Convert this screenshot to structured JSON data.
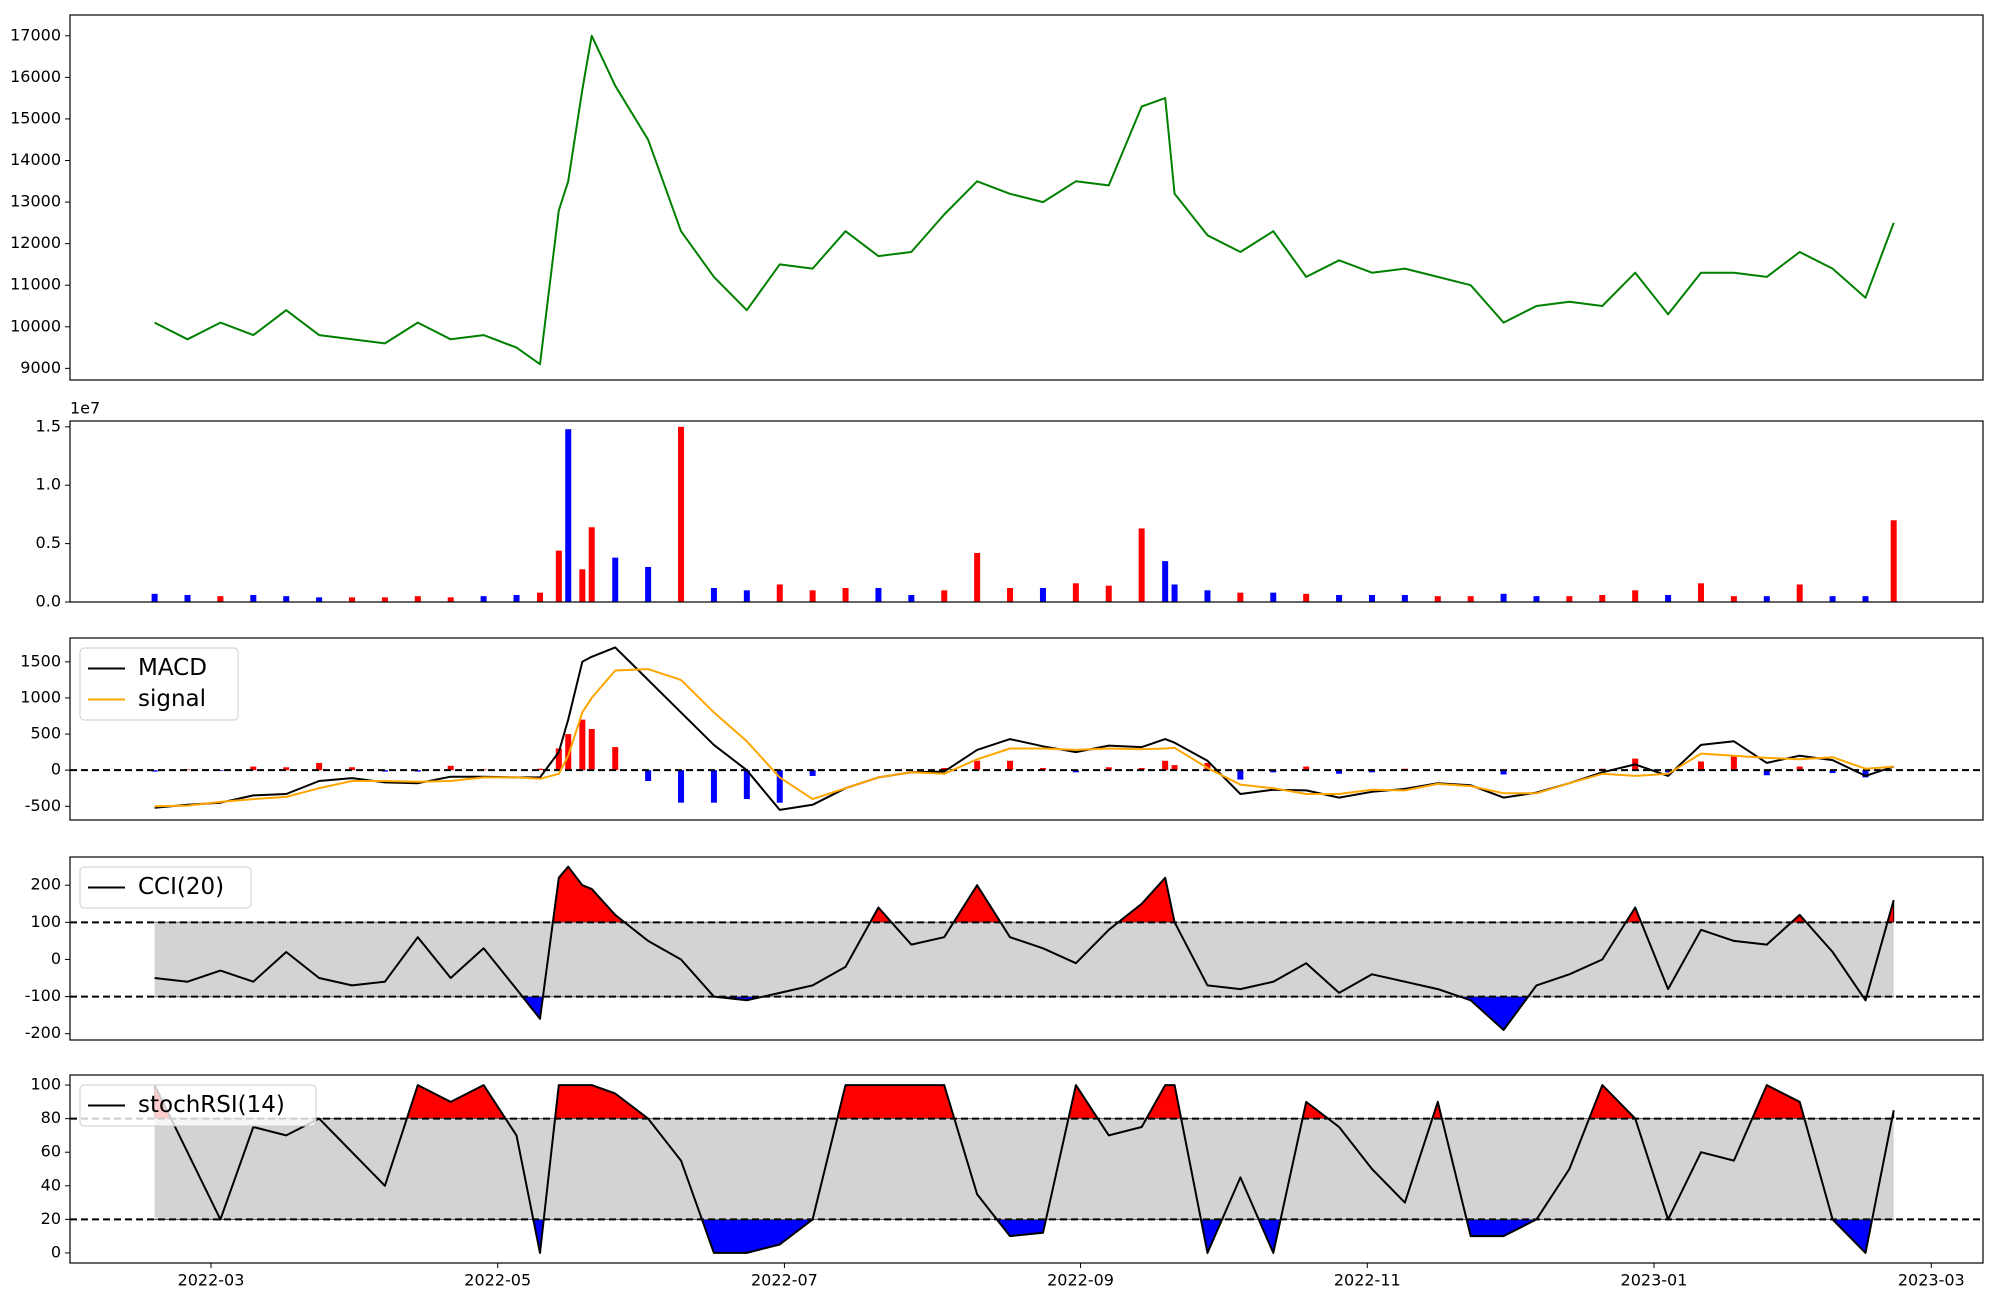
{
  "chart_data": [
    {
      "type": "line",
      "series": [
        {
          "color": "#008000",
          "values": [
            10100,
            9700,
            10100,
            9800,
            10400,
            9800,
            9700,
            9600,
            10100,
            9700,
            9800,
            9500,
            9100,
            12800,
            13500,
            15700,
            17000,
            15800,
            14500,
            12300,
            11200,
            10400,
            11500,
            11400,
            12300,
            11700,
            11800,
            12700,
            13500,
            13200,
            13000,
            13500,
            13400,
            15300,
            15500,
            13200,
            12200,
            11800,
            12300,
            11200,
            11600,
            11300,
            11400,
            11200,
            11000,
            10100,
            10500,
            10600,
            10500,
            11300,
            10300,
            11300,
            11300,
            11200,
            11800,
            11400,
            10700,
            12500
          ]
        }
      ],
      "ylim": [
        8720,
        17500
      ],
      "yticks": [
        9000,
        10000,
        11000,
        12000,
        13000,
        14000,
        15000,
        16000,
        17000
      ]
    },
    {
      "type": "bar",
      "offset_label": "1e7",
      "values": [
        0.07,
        0.06,
        0.05,
        0.06,
        0.05,
        0.04,
        0.04,
        0.04,
        0.05,
        0.04,
        0.05,
        0.06,
        0.08,
        0.44,
        1.48,
        0.28,
        0.64,
        0.38,
        0.3,
        1.5,
        0.12,
        0.1,
        0.15,
        0.1,
        0.12,
        0.12,
        0.06,
        0.1,
        0.42,
        0.12,
        0.12,
        0.16,
        0.14,
        0.63,
        0.35,
        0.15,
        0.1,
        0.08,
        0.08,
        0.07,
        0.06,
        0.06,
        0.06,
        0.05,
        0.05,
        0.07,
        0.05,
        0.05,
        0.06,
        0.1,
        0.06,
        0.16,
        0.05,
        0.05,
        0.15,
        0.05,
        0.05,
        0.7
      ],
      "colors": [
        "blue",
        "blue",
        "red",
        "blue",
        "blue",
        "blue",
        "red",
        "red",
        "red",
        "red",
        "blue",
        "blue",
        "red",
        "red",
        "blue",
        "red",
        "red",
        "blue",
        "blue",
        "red",
        "blue",
        "blue",
        "red",
        "red",
        "red",
        "blue",
        "blue",
        "red",
        "red",
        "red",
        "blue",
        "red",
        "red",
        "red",
        "blue",
        "blue",
        "blue",
        "red",
        "blue",
        "red",
        "blue",
        "blue",
        "blue",
        "red",
        "red",
        "blue",
        "blue",
        "red",
        "red",
        "red",
        "blue",
        "red",
        "red",
        "blue",
        "red",
        "blue",
        "blue",
        "red"
      ],
      "ylim": [
        0,
        1.55
      ],
      "yticks": [
        {
          "value": 0,
          "label": "0.0"
        },
        0.5,
        {
          "value": 1,
          "label": "1.0"
        },
        1.5
      ]
    },
    {
      "type": "macd",
      "series": [
        {
          "name": "MACD",
          "color": "#000000",
          "values": [
            -520,
            -480,
            -450,
            -350,
            -330,
            -150,
            -110,
            -170,
            -180,
            -90,
            -90,
            -100,
            -100,
            250,
            700,
            1500,
            1570,
            1700,
            1250,
            800,
            350,
            0,
            -550,
            -480,
            -250,
            -100,
            -30,
            -20,
            280,
            430,
            330,
            250,
            340,
            320,
            430,
            380,
            130,
            -330,
            -270,
            -280,
            -380,
            -300,
            -260,
            -180,
            -210,
            -380,
            -310,
            -180,
            -30,
            80,
            -80,
            350,
            400,
            100,
            200,
            140,
            -80,
            50
          ]
        },
        {
          "name": "signal",
          "color": "#ffa500",
          "values": [
            -500,
            -490,
            -440,
            -400,
            -370,
            -250,
            -150,
            -150,
            -160,
            -150,
            -100,
            -100,
            -120,
            -50,
            200,
            800,
            1000,
            1380,
            1400,
            1250,
            800,
            400,
            -100,
            -400,
            -250,
            -100,
            -30,
            -50,
            150,
            300,
            300,
            280,
            300,
            290,
            300,
            310,
            30,
            -200,
            -250,
            -330,
            -330,
            -270,
            -280,
            -190,
            -220,
            -320,
            -320,
            -180,
            -50,
            -80,
            -50,
            230,
            200,
            170,
            150,
            180,
            20,
            50
          ]
        }
      ],
      "histogram": {
        "up_color": "#ff0000",
        "down_color": "#0000ff",
        "values": [
          -20,
          10,
          -10,
          50,
          40,
          100,
          40,
          -20,
          -20,
          60,
          10,
          0,
          20,
          300,
          500,
          700,
          570,
          320,
          -150,
          -450,
          -450,
          -400,
          -450,
          -80,
          0,
          0,
          0,
          30,
          130,
          130,
          30,
          -30,
          40,
          30,
          130,
          70,
          100,
          -130,
          -30,
          50,
          -50,
          -30,
          20,
          10,
          10,
          -60,
          10,
          0,
          20,
          160,
          -30,
          120,
          200,
          -70,
          50,
          -40,
          -100,
          0
        ]
      },
      "hline": 0,
      "legend": "upper left",
      "ylim": [
        -690,
        1830
      ],
      "yticks": [
        -500,
        0,
        500,
        1000,
        1500
      ]
    },
    {
      "type": "oscillator",
      "series": [
        {
          "name": "CCI(20)",
          "color": "#000000",
          "values": [
            -50,
            -60,
            -30,
            -60,
            20,
            -50,
            -70,
            -60,
            60,
            -50,
            30,
            -80,
            -160,
            220,
            250,
            200,
            190,
            120,
            50,
            0,
            -100,
            -110,
            -90,
            -70,
            -20,
            140,
            40,
            60,
            200,
            60,
            30,
            -10,
            80,
            150,
            220,
            100,
            -70,
            -80,
            -60,
            -10,
            -90,
            -40,
            -60,
            -80,
            -110,
            -190,
            -70,
            -40,
            0,
            140,
            -80,
            80,
            50,
            40,
            120,
            20,
            -110,
            160
          ]
        }
      ],
      "upper": 100,
      "lower": -100,
      "upper_color": "#ff0000",
      "lower_color": "#0000ff",
      "band_color": "#d3d3d3",
      "legend": "upper left",
      "ylim": [
        -217,
        276
      ],
      "yticks": [
        -200,
        -100,
        0,
        100,
        200
      ]
    },
    {
      "type": "oscillator",
      "series": [
        {
          "name": "stochRSI(14)",
          "color": "#000000",
          "values": [
            100,
            60,
            20,
            75,
            70,
            80,
            60,
            40,
            100,
            90,
            100,
            70,
            0,
            100,
            100,
            100,
            100,
            95,
            80,
            55,
            0,
            0,
            5,
            20,
            100,
            100,
            100,
            100,
            35,
            10,
            12,
            100,
            70,
            75,
            100,
            100,
            0,
            45,
            0,
            90,
            75,
            50,
            30,
            90,
            10,
            10,
            20,
            50,
            100,
            80,
            20,
            60,
            55,
            100,
            90,
            20,
            0,
            85
          ]
        }
      ],
      "upper": 80,
      "lower": 20,
      "upper_color": "#ff0000",
      "lower_color": "#0000ff",
      "band_color": "#d3d3d3",
      "legend": "upper left",
      "ylim": [
        -6,
        106
      ],
      "yticks": [
        0,
        20,
        40,
        60,
        80,
        100
      ],
      "x": [
        18,
        25,
        32,
        39,
        46,
        53,
        60,
        67,
        74,
        81,
        88,
        95,
        100,
        104,
        106,
        109,
        111,
        116,
        123,
        130,
        137,
        144,
        151,
        158,
        165,
        172,
        179,
        186,
        193,
        200,
        207,
        214,
        221,
        228,
        233,
        235,
        242,
        249,
        256,
        263,
        270,
        277,
        284,
        291,
        298,
        305,
        312,
        319,
        326,
        333,
        340,
        347,
        354,
        361,
        368,
        375,
        382,
        388
      ],
      "xlim": [
        0,
        407
      ],
      "xticks": [
        {
          "value": 30,
          "label": "2022-03"
        },
        {
          "value": 91,
          "label": "2022-05"
        },
        {
          "value": 152,
          "label": "2022-07"
        },
        {
          "value": 215,
          "label": "2022-09"
        },
        {
          "value": 276,
          "label": "2022-11"
        },
        {
          "value": 337,
          "label": "2023-01"
        },
        {
          "value": 396,
          "label": "2023-03"
        }
      ]
    }
  ]
}
